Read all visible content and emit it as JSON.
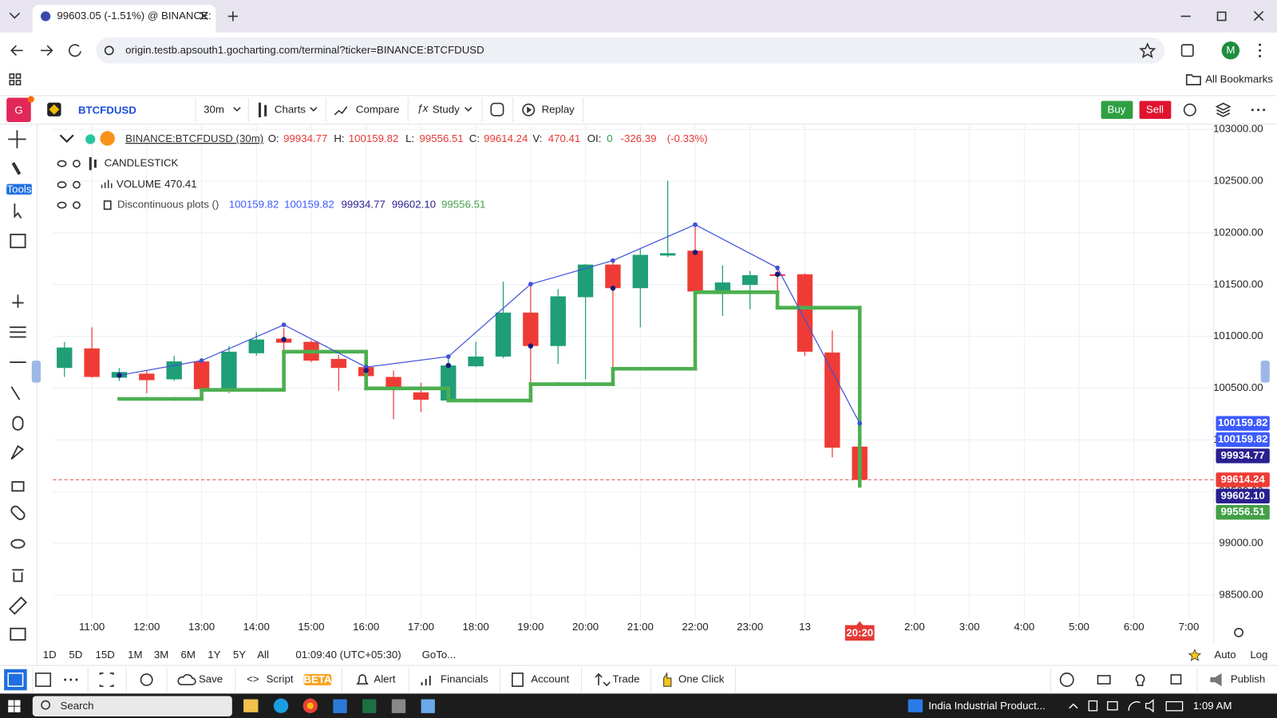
{
  "browser": {
    "tab_title": "99603.05 (-1.51%) @ BINANCE:",
    "url": "origin.testb.apsouth1.gocharting.com/terminal?ticker=BINANCE:BTCFDUSD",
    "profile": "M",
    "bookmarks": "All Bookmarks"
  },
  "toolbar": {
    "logo": "G",
    "symbol": "BTCFDUSD",
    "interval": "30m",
    "charts": "Charts",
    "compare": "Compare",
    "study": "Study",
    "replay": "Replay",
    "buy": "Buy",
    "sell": "Sell"
  },
  "sidebar": {
    "tools": "Tools"
  },
  "legend": {
    "ticker": "BINANCE:BTCFDUSD (30m)",
    "o": "O:",
    "h": "H:",
    "l": "L:",
    "c": "C:",
    "v": "V:",
    "volume": 470.41,
    "oi_label": "OI:",
    "oi": 0,
    "change": -326.39,
    "change_pct": "(-0.33%)",
    "candlestick": "CANDLESTICK",
    "volume_name": "VOLUME",
    "plots_name": "Discontinuous plots ()"
  },
  "range_bar": {
    "ranges": [
      "1D",
      "5D",
      "15D",
      "1M",
      "3M",
      "6M",
      "1Y",
      "5Y",
      "All"
    ],
    "clock": "01:09:40 (UTC+05:30)",
    "goto": "GoTo...",
    "auto": "Auto",
    "log": "Log"
  },
  "bottom_bar": {
    "save": "Save",
    "script": "Script",
    "beta": "BETA",
    "alert": "Alert",
    "financials": "Financials",
    "account": "Account",
    "trade": "Trade",
    "one_click": "One Click",
    "publish": "Publish"
  },
  "taskbar": {
    "search": "Search",
    "news": "India Industrial Product...",
    "time": "1:09 AM"
  },
  "chart_data": {
    "type": "candlestick",
    "open": [
      100695,
      100884,
      100601,
      100640,
      100585,
      100758,
      100490,
      100837,
      100978,
      100947,
      100782,
      100703,
      100608,
      100459,
      100380,
      100711,
      100805,
      101230,
      100907,
      101379,
      101694,
      101466,
      101781,
      101828,
      101434,
      101497,
      101600,
      101600,
      100844,
      99934.77
    ],
    "high": [
      100947,
      101088,
      100695,
      100671,
      100813,
      100789,
      100907,
      101041,
      101080,
      100962,
      100821,
      100750,
      100671,
      100553,
      100805,
      100947,
      101529,
      101497,
      101458,
      101700,
      101749,
      101844,
      102504,
      102080,
      101686,
      101631,
      101655,
      101610,
      101057,
      100159.82
    ],
    "low": [
      100608,
      100600,
      100569,
      100451,
      100569,
      100443,
      100451,
      100813,
      100868,
      100750,
      100475,
      100553,
      100199,
      100270,
      100365,
      100703,
      100789,
      100538,
      100734,
      100585,
      100671,
      101088,
      101765,
      101427,
      101198,
      101261,
      101419,
      100813,
      99830,
      99556.51
    ],
    "close": [
      100892,
      100608,
      100656,
      100577,
      100758,
      100490,
      100852,
      100970,
      100939,
      100766,
      100695,
      100616,
      100506,
      100388,
      100719,
      100805,
      101230,
      100907,
      101387,
      101694,
      101466,
      101788,
      101804,
      101434,
      101521,
      101592,
      101584,
      100852,
      99924,
      99614.24
    ],
    "up_color": "#1f9e77",
    "down_color": "#ef3b36",
    "series": [
      {
        "style": "step",
        "color": "#4caf50",
        "values": [
          null,
          null,
          100396,
          100396,
          100396,
          100483,
          100483,
          100483,
          100852,
          100852,
          100852,
          100498,
          100498,
          100498,
          100380,
          100380,
          100380,
          100538,
          100538,
          100538,
          100687,
          100687,
          100687,
          101427,
          101427,
          101427,
          101277,
          101277,
          101277,
          99556.51
        ]
      },
      {
        "style": "line",
        "color": "#3f51d9",
        "values": [
          null,
          null,
          100624,
          null,
          null,
          100766,
          null,
          null,
          101112,
          null,
          null,
          100703,
          null,
          null,
          100805,
          null,
          null,
          101505,
          null,
          null,
          101733,
          null,
          null,
          102080,
          null,
          null,
          101663,
          null,
          null,
          100159.82
        ]
      },
      {
        "style": "dots",
        "color": "#1a1a7a",
        "values": [
          null,
          null,
          100624,
          null,
          null,
          null,
          null,
          null,
          100970,
          null,
          null,
          100671,
          null,
          null,
          100719,
          null,
          null,
          100907,
          null,
          null,
          101466,
          null,
          null,
          101812,
          null,
          null,
          101600,
          null,
          null,
          null
        ]
      }
    ],
    "xlim": [
      -0.42,
      41.9
    ],
    "ylim": [
      98272,
      103055
    ],
    "yticks": [
      {
        "value": 98500,
        "label": "98500.00"
      },
      {
        "value": 99000,
        "label": "99000.00"
      },
      {
        "value": 99500,
        "label": "99500.00"
      },
      {
        "value": 100000,
        "label": "100000.00"
      },
      {
        "value": 100500,
        "label": "100500.00"
      },
      {
        "value": 101000,
        "label": "101000.00"
      },
      {
        "value": 101500,
        "label": "101500.00"
      },
      {
        "value": 102000,
        "label": "102000.00"
      },
      {
        "value": 102500,
        "label": "102500.00"
      },
      {
        "value": 103000,
        "label": "103000.00"
      }
    ],
    "xticks": [
      {
        "value": 1,
        "label": "11:00"
      },
      {
        "value": 3,
        "label": "12:00"
      },
      {
        "value": 5,
        "label": "13:00"
      },
      {
        "value": 7,
        "label": "14:00"
      },
      {
        "value": 9,
        "label": "15:00"
      },
      {
        "value": 11,
        "label": "16:00"
      },
      {
        "value": 13,
        "label": "17:00"
      },
      {
        "value": 15,
        "label": "18:00"
      },
      {
        "value": 17,
        "label": "19:00"
      },
      {
        "value": 19,
        "label": "20:00"
      },
      {
        "value": 21,
        "label": "21:00"
      },
      {
        "value": 23,
        "label": "22:00"
      },
      {
        "value": 25,
        "label": "23:00"
      },
      {
        "value": 27,
        "label": "13"
      },
      {
        "value": 31,
        "label": "2:00"
      },
      {
        "value": 33,
        "label": "3:00"
      },
      {
        "value": 35,
        "label": "4:00"
      },
      {
        "value": 37,
        "label": "5:00"
      },
      {
        "value": 39,
        "label": "6:00"
      },
      {
        "value": 41,
        "label": "7:00"
      }
    ],
    "grid": true,
    "price_labels": [
      {
        "value": 100159.82,
        "color": "#3d5afe"
      },
      {
        "value": 100159.82,
        "color": "#3d5afe"
      },
      {
        "value": 99934.77,
        "color": "#2a1f8f"
      },
      {
        "value": 99614.24,
        "color": "#ef3b36"
      },
      {
        "value": 99602.1,
        "label": "99602.10",
        "color": "#2a1f8f"
      },
      {
        "value": 99556.51,
        "color": "#43a047"
      }
    ],
    "countdown": "20:20"
  }
}
